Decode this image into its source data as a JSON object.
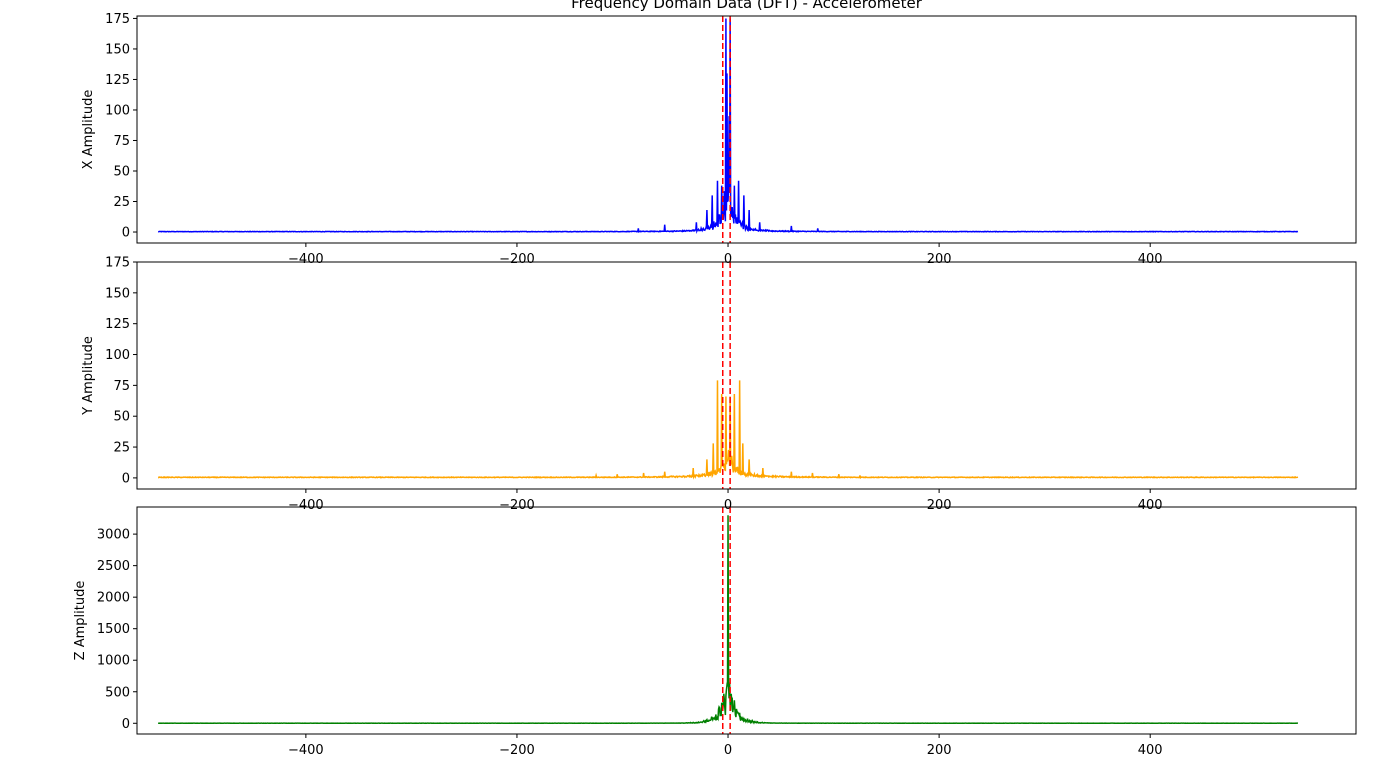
{
  "chart_data": {
    "type": "line",
    "title": "Frequency Domain Data (DFT) - Accelerometer",
    "xlim": [
      -560,
      595
    ],
    "x_ticks": [
      -400,
      -200,
      0,
      200,
      400
    ],
    "x_tick_labels": [
      "−400",
      "−200",
      "0",
      "200",
      "400"
    ],
    "x_range": [
      -540,
      540
    ],
    "cutoff_lines": {
      "x": [
        -5,
        2
      ],
      "color": "#ff0000",
      "style": "dashed"
    },
    "grid": false,
    "legend": "none",
    "subplots": [
      {
        "name": "x",
        "ylabel": "X Amplitude",
        "color": "#0000ff",
        "ylim": [
          -9,
          177
        ],
        "y_ticks": [
          0,
          25,
          50,
          75,
          100,
          125,
          150,
          175
        ],
        "peak": 175,
        "peaks": [
          [
            -2,
            175
          ],
          [
            -1,
            130
          ],
          [
            1,
            95
          ],
          [
            2,
            175
          ],
          [
            -10,
            42
          ],
          [
            -6,
            38
          ],
          [
            6,
            38
          ],
          [
            10,
            42
          ],
          [
            -15,
            30
          ],
          [
            15,
            30
          ],
          [
            -20,
            18
          ],
          [
            20,
            18
          ],
          [
            -30,
            8
          ],
          [
            30,
            8
          ],
          [
            -60,
            6
          ],
          [
            60,
            5
          ],
          [
            -85,
            3
          ],
          [
            85,
            3
          ]
        ],
        "noise_floor": 0.5
      },
      {
        "name": "y",
        "ylabel": "Y Amplitude",
        "color": "#ffa500",
        "ylim": [
          -9,
          175
        ],
        "y_ticks": [
          0,
          25,
          50,
          75,
          100,
          125,
          150,
          175
        ],
        "peak": 79,
        "peaks": [
          [
            -10,
            79
          ],
          [
            11,
            79
          ],
          [
            -6,
            68
          ],
          [
            -2,
            66
          ],
          [
            2,
            66
          ],
          [
            6,
            68
          ],
          [
            -14,
            28
          ],
          [
            14,
            28
          ],
          [
            -20,
            15
          ],
          [
            20,
            15
          ],
          [
            -33,
            8
          ],
          [
            33,
            8
          ],
          [
            -60,
            5
          ],
          [
            60,
            5
          ],
          [
            -80,
            4
          ],
          [
            80,
            4
          ],
          [
            -105,
            3
          ],
          [
            105,
            3
          ],
          [
            -125,
            2
          ],
          [
            125,
            2
          ]
        ],
        "noise_floor": 0.7
      },
      {
        "name": "z",
        "ylabel": "Z Amplitude",
        "color": "#008000",
        "ylim": [
          -170,
          3430
        ],
        "y_ticks": [
          0,
          500,
          1000,
          1500,
          2000,
          2500,
          3000
        ],
        "peak": 3300,
        "peaks": [
          [
            0,
            3300
          ],
          [
            -2,
            320
          ],
          [
            2,
            300
          ],
          [
            -4,
            250
          ],
          [
            4,
            240
          ],
          [
            -8,
            80
          ],
          [
            8,
            80
          ],
          [
            -14,
            40
          ],
          [
            14,
            40
          ],
          [
            -25,
            15
          ],
          [
            25,
            15
          ]
        ],
        "noise_floor": 2
      }
    ]
  }
}
